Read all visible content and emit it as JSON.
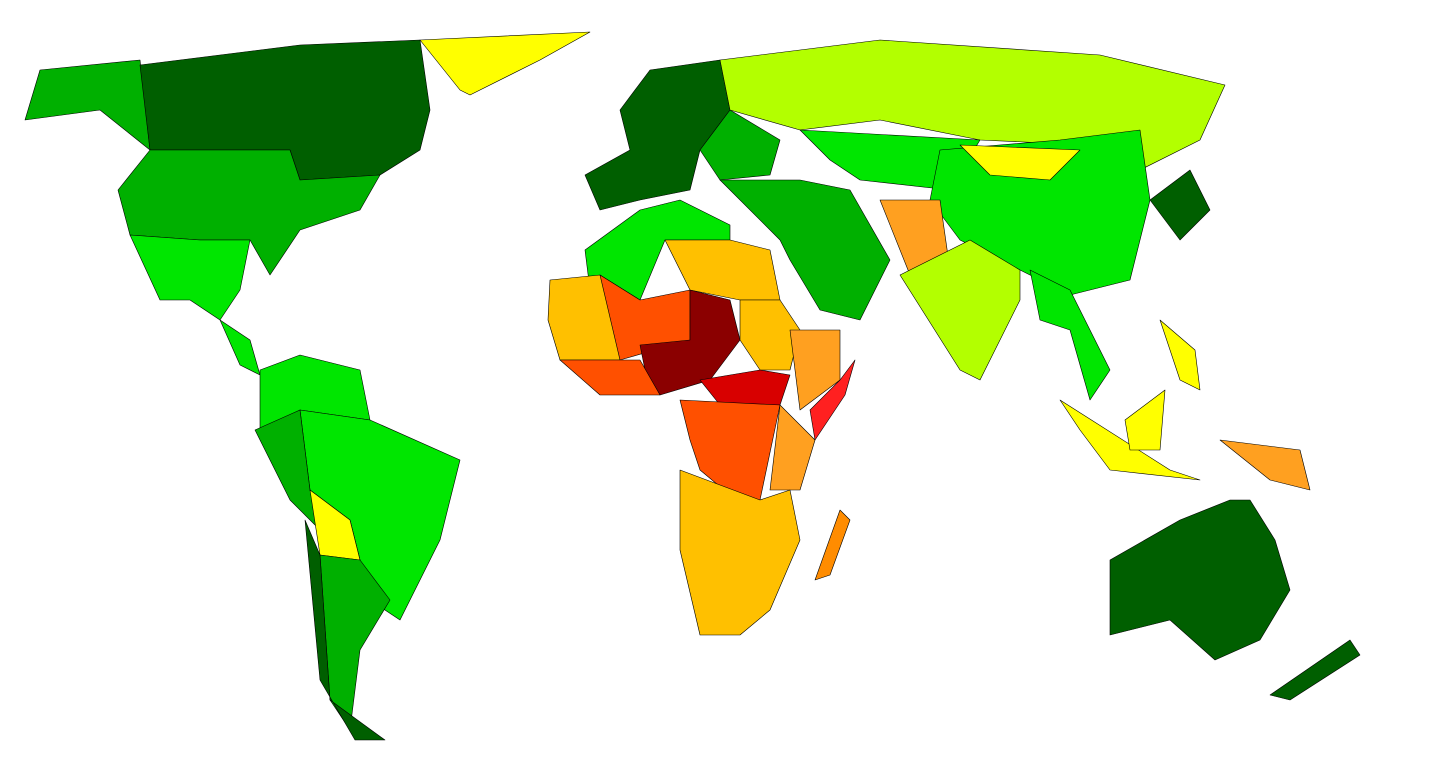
{
  "map": {
    "colors": [
      "#005f00",
      "#00b000",
      "#00e600",
      "#b3ff00",
      "#ffff00",
      "#ffc000",
      "#ffa020",
      "#ff8c00",
      "#ff5000",
      "#d80000",
      "#8b0000",
      "#ff2020"
    ]
  }
}
